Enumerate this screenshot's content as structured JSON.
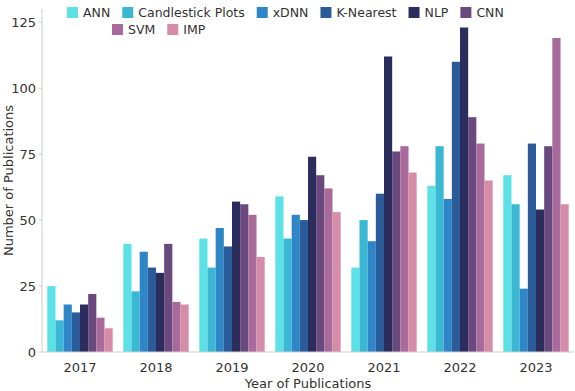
{
  "chart_data": {
    "type": "bar",
    "x_label": "Year of Publications",
    "y_label": "Number of Publications",
    "categories": [
      "2017",
      "2018",
      "2019",
      "2020",
      "2021",
      "2022",
      "2023"
    ],
    "series": [
      {
        "name": "ANN",
        "color": "#5ce1e6",
        "values": [
          25,
          41,
          43,
          59,
          32,
          63,
          67
        ]
      },
      {
        "name": "Candlestick Plots",
        "color": "#3ab7d3",
        "values": [
          12,
          23,
          32,
          43,
          50,
          78,
          56
        ]
      },
      {
        "name": "xDNN",
        "color": "#2f86c6",
        "values": [
          18,
          38,
          47,
          52,
          42,
          58,
          24
        ]
      },
      {
        "name": "K-Nearest",
        "color": "#2b5b98",
        "values": [
          15,
          32,
          40,
          50,
          60,
          110,
          79
        ]
      },
      {
        "name": "NLP",
        "color": "#2b2d5c",
        "values": [
          18,
          30,
          57,
          74,
          112,
          123,
          54
        ]
      },
      {
        "name": "CNN",
        "color": "#6a4a7e",
        "values": [
          22,
          41,
          56,
          67,
          76,
          89,
          78
        ]
      },
      {
        "name": "SVM",
        "color": "#a8699b",
        "values": [
          13,
          19,
          52,
          62,
          78,
          79,
          119
        ]
      },
      {
        "name": "IMP",
        "color": "#d68ba6",
        "values": [
          9,
          18,
          36,
          53,
          68,
          65,
          56
        ]
      }
    ],
    "ylim": [
      0,
      130
    ],
    "yticks": [
      0,
      25,
      50,
      75,
      100,
      125
    ],
    "grid": false,
    "legend": "top"
  }
}
